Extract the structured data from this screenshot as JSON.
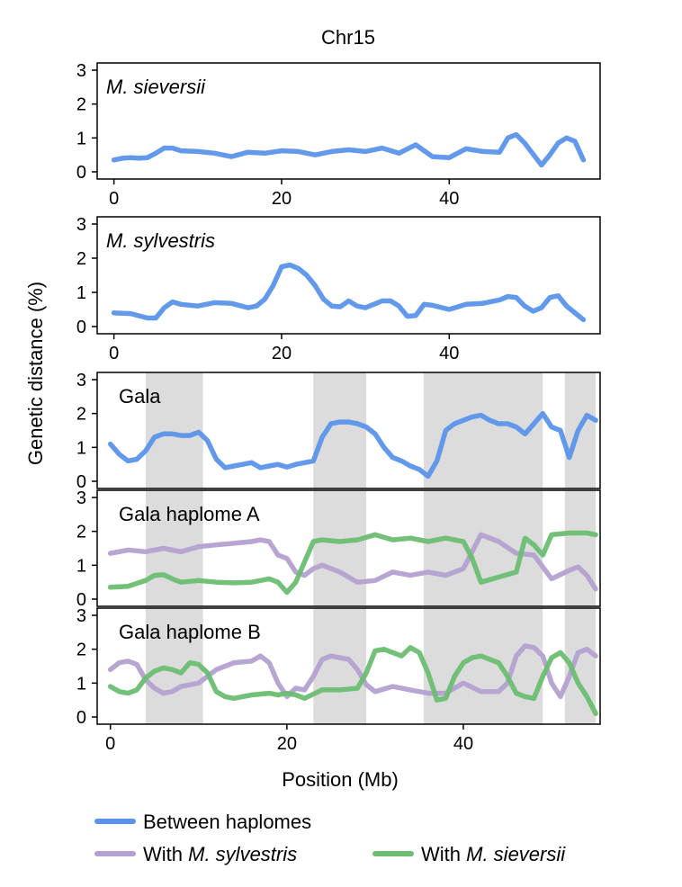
{
  "title": "Chr15",
  "ylabel": "Genetic distance (%)",
  "xlabel": "Position (Mb)",
  "colors": {
    "between": "#5b93ea",
    "sylvestris": "#b3a1cf",
    "sieversii": "#6cbd72",
    "shade": "#dcdcdc"
  },
  "legend": [
    {
      "key": "between",
      "prefix": "Between haplomes",
      "italic": ""
    },
    {
      "key": "sylvestris",
      "prefix": "With ",
      "italic": "M. sylvestris"
    },
    {
      "key": "sieversii",
      "prefix": "With ",
      "italic": "M. sieversii"
    }
  ],
  "chart_data": {
    "type": "line",
    "title": "Chr15",
    "xlabel": "Position (Mb)",
    "ylabel": "Genetic distance (%)",
    "ylim": [
      0,
      3
    ],
    "yticks": [
      0,
      1,
      2,
      3
    ],
    "xticks": [
      0,
      20,
      40
    ],
    "shaded_regions_mb": [
      [
        4,
        10.5
      ],
      [
        23,
        29
      ],
      [
        35.5,
        49
      ],
      [
        51.5,
        55
      ]
    ],
    "panels": [
      {
        "label": "M. sieversii",
        "italic": true,
        "shaded": false,
        "xlim": [
          -2,
          58
        ],
        "series": [
          {
            "key": "between",
            "x": [
              0,
              1,
              2,
              3,
              4,
              5,
              6,
              7,
              8,
              10,
              12,
              14,
              16,
              18,
              20,
              22,
              24,
              26,
              28,
              30,
              32,
              34,
              36,
              38,
              40,
              42,
              44,
              46,
              47,
              48,
              49,
              51,
              52,
              53,
              54,
              55,
              56
            ],
            "y": [
              0.35,
              0.4,
              0.42,
              0.4,
              0.42,
              0.55,
              0.7,
              0.7,
              0.62,
              0.6,
              0.55,
              0.45,
              0.58,
              0.55,
              0.62,
              0.6,
              0.5,
              0.6,
              0.65,
              0.6,
              0.7,
              0.55,
              0.8,
              0.45,
              0.42,
              0.68,
              0.6,
              0.58,
              1.0,
              1.1,
              0.85,
              0.2,
              0.5,
              0.85,
              1.0,
              0.9,
              0.35
            ]
          }
        ]
      },
      {
        "label": "M. sylvestris",
        "italic": true,
        "shaded": false,
        "xlim": [
          -2,
          58
        ],
        "series": [
          {
            "key": "between",
            "x": [
              0,
              2,
              4,
              5,
              6,
              7,
              8,
              10,
              12,
              14,
              16,
              17,
              18,
              19,
              20,
              21,
              22,
              23,
              24,
              25,
              26,
              27,
              28,
              29,
              30,
              32,
              33,
              34,
              35,
              36,
              37,
              38,
              40,
              42,
              44,
              46,
              47,
              48,
              49,
              50,
              51,
              52,
              53,
              54,
              55,
              56
            ],
            "y": [
              0.4,
              0.38,
              0.25,
              0.25,
              0.55,
              0.72,
              0.65,
              0.6,
              0.7,
              0.68,
              0.55,
              0.6,
              0.8,
              1.2,
              1.75,
              1.8,
              1.7,
              1.5,
              1.2,
              0.8,
              0.6,
              0.58,
              0.75,
              0.6,
              0.55,
              0.75,
              0.75,
              0.6,
              0.3,
              0.32,
              0.65,
              0.62,
              0.5,
              0.65,
              0.68,
              0.78,
              0.88,
              0.85,
              0.6,
              0.45,
              0.55,
              0.85,
              0.9,
              0.6,
              0.4,
              0.2
            ]
          }
        ]
      },
      {
        "label": "Gala",
        "italic": false,
        "shaded": true,
        "xlim": [
          -1.5,
          55.5
        ],
        "series": [
          {
            "key": "between",
            "x": [
              0,
              1,
              2,
              3,
              4,
              5,
              6,
              7,
              8,
              9,
              10,
              11,
              12,
              13,
              14,
              15,
              16,
              17,
              18,
              19,
              20,
              21,
              22,
              23,
              24,
              25,
              26,
              27,
              28,
              29,
              30,
              31,
              32,
              33,
              34,
              35,
              36,
              37,
              38,
              39,
              40,
              41,
              42,
              43,
              44,
              45,
              46,
              47,
              48,
              49,
              50,
              51,
              52,
              53,
              54,
              55
            ],
            "y": [
              1.1,
              0.8,
              0.6,
              0.65,
              0.9,
              1.3,
              1.4,
              1.4,
              1.35,
              1.35,
              1.45,
              1.2,
              0.65,
              0.4,
              0.45,
              0.5,
              0.55,
              0.4,
              0.45,
              0.5,
              0.42,
              0.5,
              0.55,
              0.6,
              1.3,
              1.7,
              1.75,
              1.75,
              1.7,
              1.6,
              1.4,
              1.0,
              0.7,
              0.6,
              0.45,
              0.35,
              0.15,
              0.6,
              1.5,
              1.7,
              1.8,
              1.9,
              1.95,
              1.8,
              1.7,
              1.7,
              1.6,
              1.4,
              1.7,
              2.0,
              1.6,
              1.5,
              0.7,
              1.5,
              1.95,
              1.8
            ]
          }
        ]
      },
      {
        "label": "Gala haplome A",
        "italic": false,
        "shaded": true,
        "xlim": [
          -1.5,
          55.5
        ],
        "series": [
          {
            "key": "sylvestris",
            "x": [
              0,
              2,
              4,
              6,
              8,
              10,
              12,
              14,
              16,
              17,
              18,
              19,
              20,
              21,
              22,
              23,
              24,
              26,
              28,
              30,
              32,
              34,
              36,
              38,
              40,
              42,
              44,
              46,
              48,
              50,
              52,
              53,
              54,
              55
            ],
            "y": [
              1.35,
              1.45,
              1.4,
              1.5,
              1.4,
              1.55,
              1.6,
              1.65,
              1.7,
              1.75,
              1.7,
              1.3,
              1.2,
              0.8,
              0.7,
              0.9,
              1.0,
              0.8,
              0.5,
              0.55,
              0.8,
              0.7,
              0.8,
              0.7,
              0.9,
              1.9,
              1.7,
              1.35,
              1.3,
              0.6,
              0.85,
              0.95,
              0.7,
              0.3
            ]
          },
          {
            "key": "sieversii",
            "x": [
              0,
              2,
              4,
              5,
              6,
              7,
              8,
              10,
              12,
              14,
              16,
              18,
              19,
              20,
              21,
              22,
              23,
              24,
              26,
              28,
              30,
              32,
              34,
              36,
              38,
              40,
              41,
              42,
              44,
              46,
              47,
              48,
              49,
              50,
              52,
              54,
              55
            ],
            "y": [
              0.35,
              0.38,
              0.55,
              0.7,
              0.72,
              0.6,
              0.5,
              0.55,
              0.5,
              0.48,
              0.5,
              0.6,
              0.5,
              0.2,
              0.5,
              1.1,
              1.7,
              1.75,
              1.7,
              1.75,
              1.9,
              1.75,
              1.8,
              1.7,
              1.8,
              1.7,
              1.2,
              0.5,
              0.65,
              0.8,
              1.8,
              1.6,
              1.3,
              1.9,
              1.95,
              1.95,
              1.9
            ]
          }
        ]
      },
      {
        "label": "Gala haplome B",
        "italic": false,
        "shaded": true,
        "xlim": [
          -1.5,
          55.5
        ],
        "series": [
          {
            "key": "sylvestris",
            "x": [
              0,
              1,
              2,
              3,
              4,
              5,
              6,
              7,
              8,
              9,
              10,
              12,
              14,
              16,
              17,
              18,
              19,
              20,
              21,
              22,
              23,
              24,
              25,
              26,
              27,
              28,
              29,
              30,
              32,
              34,
              36,
              38,
              40,
              42,
              44,
              45,
              46,
              47,
              48,
              49,
              50,
              51,
              52,
              53,
              54,
              55
            ],
            "y": [
              1.4,
              1.6,
              1.65,
              1.55,
              1.1,
              0.85,
              0.7,
              0.75,
              0.9,
              0.95,
              1.0,
              1.4,
              1.6,
              1.65,
              1.8,
              1.6,
              1.0,
              0.6,
              0.85,
              0.8,
              1.2,
              1.7,
              1.8,
              1.75,
              1.7,
              1.4,
              0.95,
              0.75,
              0.9,
              0.8,
              0.7,
              0.7,
              1.0,
              0.75,
              0.75,
              1.0,
              1.8,
              2.1,
              2.05,
              1.8,
              1.0,
              0.6,
              1.2,
              1.9,
              2.0,
              1.8
            ]
          },
          {
            "key": "sieversii",
            "x": [
              0,
              1,
              2,
              3,
              4,
              5,
              6,
              7,
              8,
              9,
              10,
              11,
              12,
              13,
              14,
              16,
              18,
              19,
              20,
              21,
              22,
              24,
              26,
              28,
              29,
              30,
              31,
              32,
              33,
              34,
              35,
              36,
              37,
              38,
              39,
              40,
              41,
              42,
              44,
              45,
              46,
              47,
              48,
              49,
              50,
              51,
              52,
              53,
              54,
              55
            ],
            "y": [
              0.9,
              0.75,
              0.7,
              0.8,
              1.15,
              1.35,
              1.45,
              1.4,
              1.3,
              1.6,
              1.55,
              1.3,
              0.75,
              0.6,
              0.55,
              0.65,
              0.7,
              0.65,
              0.7,
              0.65,
              0.55,
              0.8,
              0.8,
              0.85,
              1.3,
              1.95,
              2.0,
              1.9,
              1.8,
              2.05,
              1.9,
              1.3,
              0.5,
              0.55,
              1.2,
              1.6,
              1.75,
              1.8,
              1.6,
              1.2,
              0.7,
              0.6,
              0.55,
              1.2,
              1.75,
              1.9,
              1.6,
              1.0,
              0.6,
              0.1
            ]
          }
        ]
      }
    ]
  }
}
